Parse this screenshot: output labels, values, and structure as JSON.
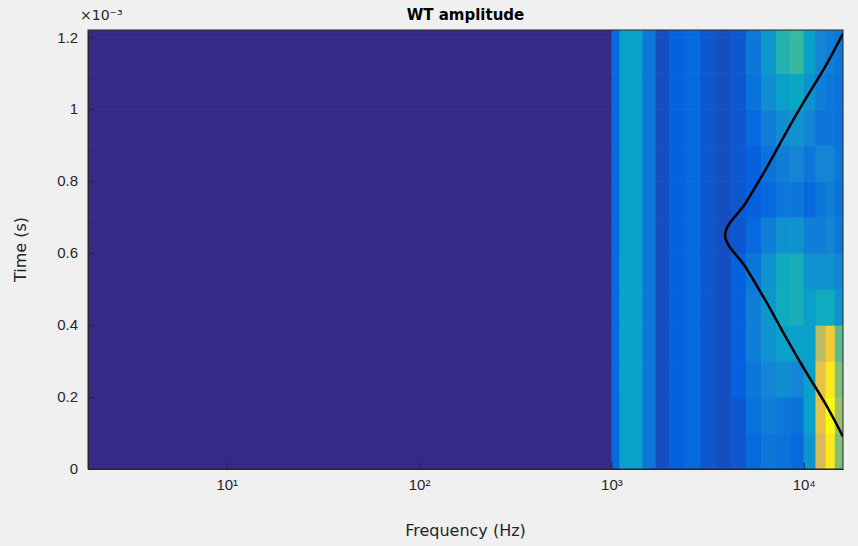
{
  "chart_data": {
    "type": "heatmap",
    "title": "WT amplitude",
    "x_label": "Frequency (Hz)",
    "y_label": "Time (s)",
    "annotations": [
      "×10⁻³"
    ],
    "log": "x",
    "grid": false,
    "xlim": [
      1.9,
      16000
    ],
    "ylim": [
      0,
      0.00122
    ],
    "xticks": [
      {
        "value": 10,
        "label": "10¹"
      },
      {
        "value": 100,
        "label": "10²"
      },
      {
        "value": 1000,
        "label": "10³"
      },
      {
        "value": 10000,
        "label": "10⁴"
      }
    ],
    "yticks": [
      0,
      {
        "value": 0.0002,
        "label": "0.2"
      },
      {
        "value": 0.0004,
        "label": "0.4"
      },
      {
        "value": 0.0006,
        "label": "0.6"
      },
      {
        "value": 0.0008,
        "label": "0.8"
      },
      {
        "value": 0.001,
        "label": "1"
      },
      {
        "value": 0.0012,
        "label": "1.2"
      }
    ],
    "zlim": [
      0,
      1
    ],
    "x_edges": [
      1.9,
      1000,
      1100,
      1250,
      1450,
      1700,
      2000,
      2400,
      2900,
      3500,
      4200,
      5000,
      6000,
      7200,
      8500,
      10000,
      11500,
      13000,
      14500,
      16000
    ],
    "y_edges": [
      0,
      0.0001,
      0.0002,
      0.0003,
      0.0004,
      0.0005,
      0.0006,
      0.0007,
      0.0008,
      0.0009,
      0.001,
      0.0011,
      0.0012,
      0.00122
    ],
    "z": [
      [
        0,
        0.15,
        0.35,
        0.35,
        0.2,
        0.08,
        0.12,
        0.15,
        0.1,
        0.08,
        0.1,
        0.15,
        0.2,
        0.18,
        0.15,
        0.3,
        0.75,
        0.95,
        0.6
      ],
      [
        0,
        0.15,
        0.35,
        0.35,
        0.2,
        0.08,
        0.12,
        0.15,
        0.1,
        0.08,
        0.1,
        0.18,
        0.22,
        0.2,
        0.18,
        0.35,
        0.8,
        1.0,
        0.65
      ],
      [
        0,
        0.15,
        0.36,
        0.36,
        0.2,
        0.08,
        0.12,
        0.15,
        0.1,
        0.08,
        0.12,
        0.2,
        0.25,
        0.28,
        0.25,
        0.35,
        0.8,
        0.95,
        0.6
      ],
      [
        0,
        0.15,
        0.36,
        0.36,
        0.2,
        0.08,
        0.12,
        0.15,
        0.1,
        0.08,
        0.12,
        0.22,
        0.3,
        0.35,
        0.35,
        0.35,
        0.7,
        0.85,
        0.55
      ],
      [
        0,
        0.15,
        0.36,
        0.36,
        0.2,
        0.08,
        0.12,
        0.15,
        0.1,
        0.08,
        0.12,
        0.22,
        0.32,
        0.4,
        0.42,
        0.35,
        0.4,
        0.4,
        0.3
      ],
      [
        0,
        0.15,
        0.36,
        0.36,
        0.2,
        0.08,
        0.12,
        0.15,
        0.1,
        0.08,
        0.12,
        0.2,
        0.3,
        0.4,
        0.42,
        0.3,
        0.3,
        0.3,
        0.25
      ],
      [
        0,
        0.15,
        0.35,
        0.35,
        0.2,
        0.08,
        0.12,
        0.15,
        0.1,
        0.08,
        0.1,
        0.15,
        0.22,
        0.3,
        0.3,
        0.22,
        0.22,
        0.25,
        0.2
      ],
      [
        0,
        0.15,
        0.35,
        0.35,
        0.2,
        0.08,
        0.12,
        0.15,
        0.1,
        0.08,
        0.1,
        0.12,
        0.15,
        0.2,
        0.2,
        0.15,
        0.2,
        0.22,
        0.18
      ],
      [
        0,
        0.15,
        0.35,
        0.35,
        0.2,
        0.08,
        0.12,
        0.15,
        0.1,
        0.08,
        0.1,
        0.12,
        0.18,
        0.22,
        0.25,
        0.2,
        0.25,
        0.25,
        0.2
      ],
      [
        0,
        0.15,
        0.35,
        0.35,
        0.2,
        0.08,
        0.12,
        0.15,
        0.1,
        0.08,
        0.1,
        0.15,
        0.22,
        0.28,
        0.3,
        0.25,
        0.2,
        0.2,
        0.18
      ],
      [
        0,
        0.15,
        0.35,
        0.35,
        0.2,
        0.08,
        0.12,
        0.15,
        0.1,
        0.08,
        0.1,
        0.18,
        0.28,
        0.35,
        0.38,
        0.3,
        0.22,
        0.2,
        0.18
      ],
      [
        0,
        0.15,
        0.35,
        0.35,
        0.2,
        0.08,
        0.12,
        0.15,
        0.1,
        0.08,
        0.1,
        0.2,
        0.32,
        0.45,
        0.5,
        0.35,
        0.25,
        0.22,
        0.2
      ],
      [
        0,
        0.15,
        0.35,
        0.35,
        0.2,
        0.08,
        0.12,
        0.15,
        0.1,
        0.08,
        0.1,
        0.2,
        0.32,
        0.45,
        0.5,
        0.35,
        0.25,
        0.22,
        0.2
      ]
    ],
    "series": [
      {
        "type": "line",
        "color": "#000000",
        "x": [
          16000,
          13000,
          10000,
          8000,
          6300,
          5000,
          3900,
          5000,
          6300,
          8000,
          10000,
          13000,
          16000
        ],
        "values": [
          9e-05,
          0.00018,
          0.00028,
          0.00037,
          0.00047,
          0.00056,
          0.00065,
          0.00074,
          0.00083,
          0.00093,
          0.00102,
          0.00112,
          0.00121
        ]
      }
    ]
  }
}
